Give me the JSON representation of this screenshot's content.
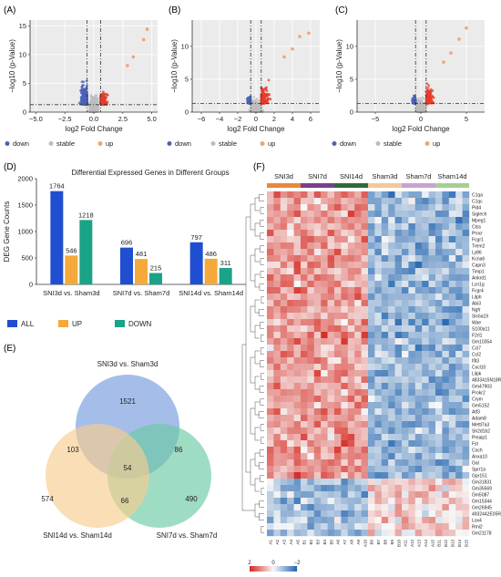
{
  "panels": {
    "A": "(A)",
    "B": "(B)",
    "C": "(C)",
    "D": "(D)",
    "E": "(E)",
    "F": "(F)"
  },
  "volcano": {
    "xlabel": "log2 Fold Change",
    "ylabel": "−log10 (p-Value)",
    "legend": [
      "down",
      "stable",
      "up"
    ],
    "colors": {
      "down": "#4a63b8",
      "stable": "#bdbdbd",
      "up": "#e83b2c",
      "far_up": "#f2a27a"
    },
    "A": {
      "xticks": [
        "−5.0",
        "−2.5",
        "0.0",
        "2.5",
        "5.0"
      ],
      "yticks": [
        "0",
        "5",
        "10",
        "15"
      ]
    },
    "B": {
      "xticks": [
        "−6",
        "−4",
        "−2",
        "0",
        "2",
        "4",
        "6"
      ],
      "yticks": [
        "0",
        "5",
        "10"
      ]
    },
    "C": {
      "xticks": [
        "−5",
        "0",
        "5"
      ],
      "yticks": [
        "0",
        "5",
        "10"
      ]
    }
  },
  "chart_data": [
    {
      "type": "scatter",
      "panel": "A",
      "xlabel": "log2 Fold Change",
      "ylabel": "−log10 (p-Value)",
      "xlim": [
        -5.5,
        5.5
      ],
      "ylim": [
        0,
        16
      ],
      "series": [
        {
          "name": "down"
        },
        {
          "name": "stable"
        },
        {
          "name": "up"
        }
      ]
    },
    {
      "type": "scatter",
      "panel": "B",
      "xlabel": "log2 Fold Change",
      "ylabel": "−log10 (p-Value)",
      "xlim": [
        -7,
        7
      ],
      "ylim": [
        0,
        14
      ],
      "series": [
        {
          "name": "down"
        },
        {
          "name": "stable"
        },
        {
          "name": "up"
        }
      ]
    },
    {
      "type": "scatter",
      "panel": "C",
      "xlabel": "log2 Fold Change",
      "ylabel": "−log10 (p-Value)",
      "xlim": [
        -7,
        7
      ],
      "ylim": [
        0,
        14
      ],
      "series": [
        {
          "name": "down"
        },
        {
          "name": "stable"
        },
        {
          "name": "up"
        }
      ]
    },
    {
      "type": "bar",
      "panel": "D",
      "title": "Differential Expressed Genes in Different Groups",
      "ylabel": "DEG Gene Counts",
      "ylim": [
        0,
        2000
      ],
      "yticks": [
        "0",
        "500",
        "1000",
        "1500",
        "2000"
      ],
      "categories": [
        "SNI3d vs. Sham3d",
        "SNI7d vs. Sham7d",
        "SNI14d vs. Sham14d"
      ],
      "series": [
        {
          "name": "ALL",
          "color": "#1f4fd0",
          "values": [
            1764,
            696,
            797
          ]
        },
        {
          "name": "UP",
          "color": "#f5a93a",
          "values": [
            546,
            481,
            486
          ]
        },
        {
          "name": "DOWN",
          "color": "#1aa386",
          "values": [
            1218,
            215,
            311
          ]
        }
      ]
    },
    {
      "type": "venn",
      "panel": "E",
      "sets": [
        "SNI3d vs. Sham3d",
        "SNI7d vs. Sham7d",
        "SNI14d vs. Sham14d"
      ],
      "colors": [
        "#7ea3e0",
        "#6ccaa4",
        "#f7cd8f"
      ],
      "regions": {
        "only_3d": 1521,
        "only_7d": 490,
        "only_14d": 574,
        "3d_7d": 86,
        "3d_14d": 103,
        "7d_14d": 66,
        "all": 54
      }
    },
    {
      "type": "heatmap",
      "panel": "F",
      "groups": [
        "SNI3d",
        "SNI7d",
        "SNI14d",
        "Sham3d",
        "Sham7d",
        "Sham14d"
      ],
      "group_colors": [
        "#e8893a",
        "#7b3f8c",
        "#2f6b3a",
        "#f2c99a",
        "#c7a3d4",
        "#a6cf92"
      ],
      "samples": [
        "A1",
        "A2",
        "A3",
        "A4",
        "A5",
        "B1",
        "B2",
        "B3",
        "B4",
        "B5",
        "A6",
        "A7",
        "A8",
        "A9",
        "A10",
        "B6",
        "B7",
        "B8",
        "B9",
        "B10",
        "A11",
        "A12",
        "A13",
        "A14",
        "A15",
        "B11",
        "B12",
        "B13",
        "B14",
        "B15"
      ],
      "genes": [
        "C1qa",
        "C1qc",
        "Pld4",
        "Siglech",
        "Mpeg1",
        "Ctss",
        "Procr",
        "Fcgr1",
        "Trem2",
        "Ly86",
        "Kcna6",
        "Capn3",
        "Timp1",
        "Ankrd1",
        "Lcn1g",
        "Fcgr4",
        "Lilph",
        "Abi3",
        "Ngfr",
        "Slc6a19",
        "Wae",
        "S100a11",
        "F2rl1",
        "Gm10354",
        "Ccl7",
        "Ccl2",
        "Ifit3",
        "Cxcl10",
        "Lilpk",
        "4833415N18Rik",
        "Gm47903",
        "Prokr2",
        "Crym",
        "Gm5152",
        "Atf3",
        "Adam8",
        "Mettl7a3",
        "Sh2d1b2",
        "Pmaip1",
        "Fst",
        "Coch",
        "Anxa10",
        "Gal",
        "Sprr1a",
        "Gpr151",
        "Gm31831",
        "Gm35569",
        "Gm5087",
        "Gm15344",
        "Gm26945",
        "4932442E05Rik",
        "Lox4",
        "Rmi2",
        "Gm21178"
      ],
      "scale": {
        "min": -2,
        "max": 2,
        "ticks": [
          "2",
          "0",
          "−2"
        ]
      }
    }
  ]
}
